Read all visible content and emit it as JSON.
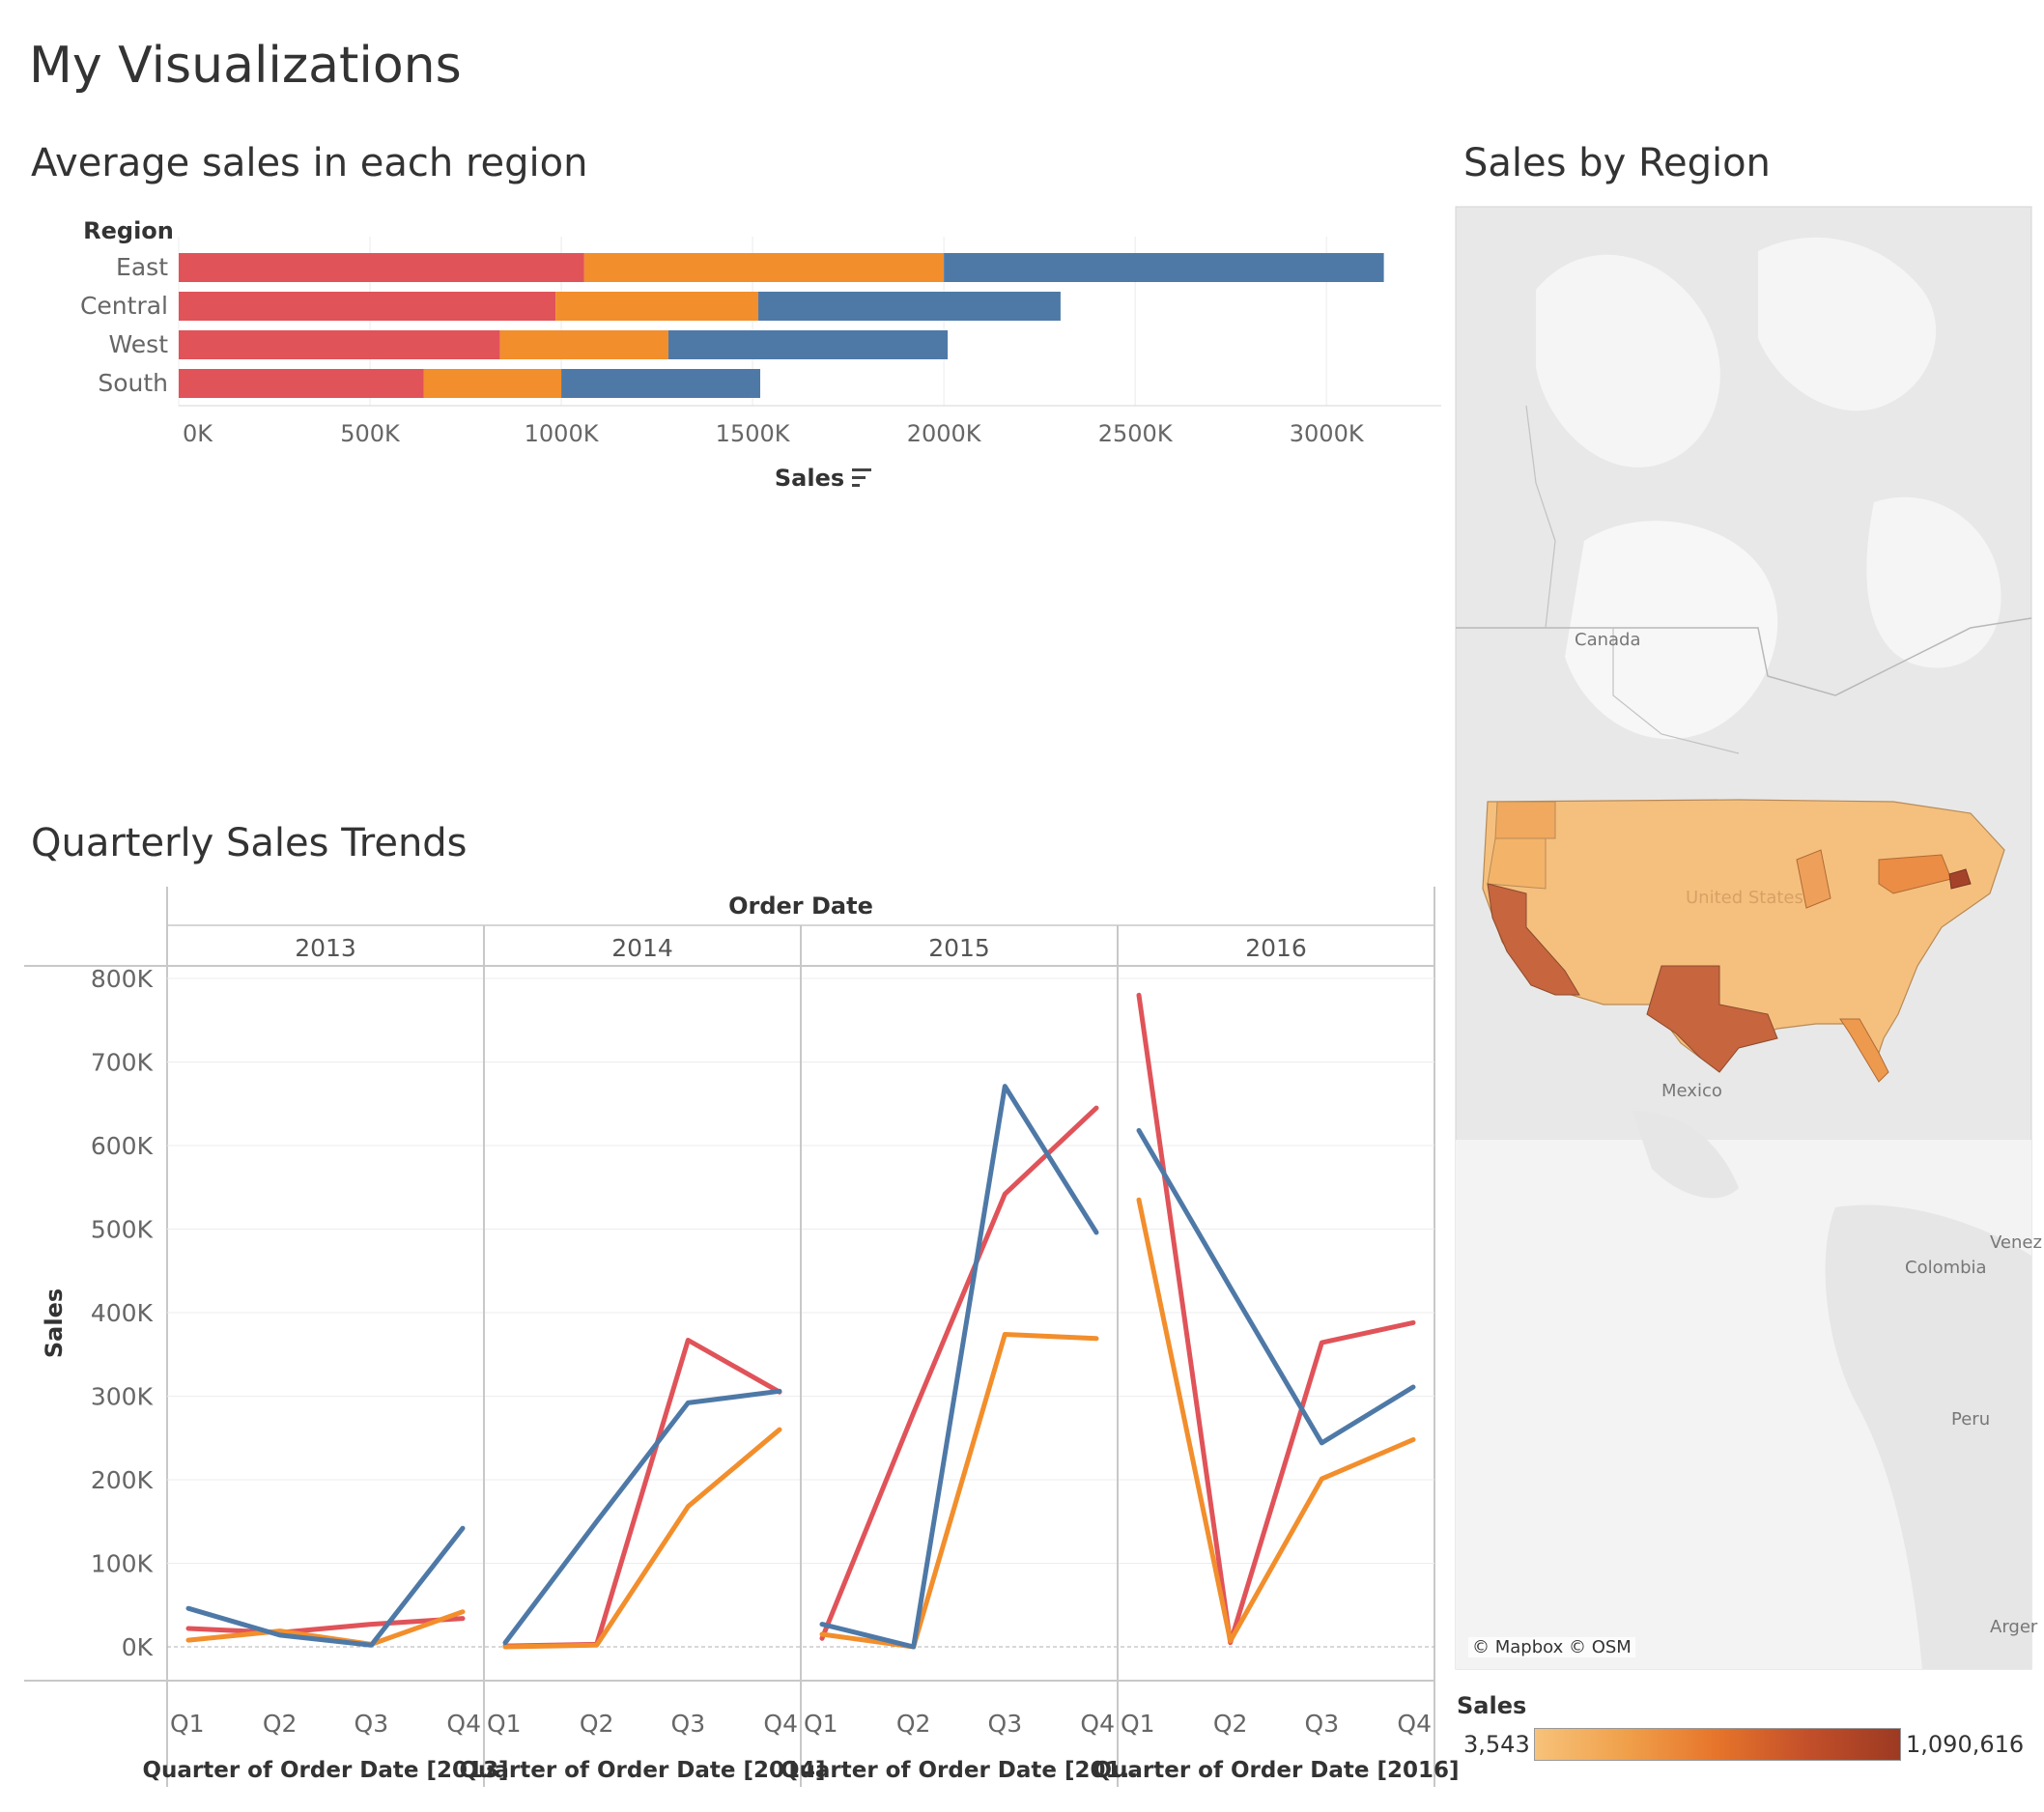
{
  "page": {
    "title": "My Visualizations"
  },
  "colors": {
    "series1": "#e05359",
    "series2": "#f28e2c",
    "series3": "#4e79a7"
  },
  "bar_sheet": {
    "title": "Average sales in each region"
  },
  "map_sheet": {
    "title": "Sales by Region",
    "labels": {
      "canada": "Canada",
      "united_states": "United States",
      "mexico": "Mexico",
      "colombia": "Colombia",
      "peru": "Peru",
      "venezuela": "Venez",
      "argentina": "Arger"
    },
    "credit": "© Mapbox © OSM",
    "legend": {
      "title": "Sales",
      "min_label": "3,543",
      "max_label": "1,090,616",
      "min": 3543,
      "max": 1090616,
      "gradient": [
        "#f7c27a",
        "#e6742a",
        "#9c3a22"
      ]
    }
  },
  "line_sheet": {
    "title": "Quarterly Sales Trends"
  },
  "chart_data": [
    {
      "type": "bar",
      "stacked": true,
      "orientation": "horizontal",
      "row_header": "Region",
      "categories": [
        "East",
        "Central",
        "West",
        "South"
      ],
      "series": [
        {
          "color": "#e05359",
          "values": [
            1060000,
            985000,
            840000,
            640000
          ]
        },
        {
          "color": "#f28e2c",
          "values": [
            940000,
            530000,
            440000,
            360000
          ]
        },
        {
          "color": "#4e79a7",
          "values": [
            1150000,
            790000,
            730000,
            520000
          ]
        }
      ],
      "xlabel": "Sales",
      "xlim": [
        0,
        3300000
      ],
      "xticks": [
        0,
        500000,
        1000000,
        1500000,
        2000000,
        2500000,
        3000000
      ],
      "xtick_labels": [
        "0K",
        "500K",
        "1000K",
        "1500K",
        "2000K",
        "2500K",
        "3000K"
      ],
      "grid": true
    },
    {
      "type": "line",
      "column_header": "Order Date",
      "panels": [
        {
          "year": "2013",
          "xlabel": "Quarter of Order Date [2013]",
          "series": [
            {
              "color": "#e05359",
              "values": [
                22000,
                17000,
                27000,
                34000
              ]
            },
            {
              "color": "#f28e2c",
              "values": [
                8000,
                19000,
                3000,
                42000
              ]
            },
            {
              "color": "#4e79a7",
              "values": [
                46000,
                14000,
                2000,
                142000
              ]
            }
          ]
        },
        {
          "year": "2014",
          "xlabel": "Quarter of Order Date [2014]",
          "series": [
            {
              "color": "#e05359",
              "values": [
                1000,
                3000,
                367000,
                305000
              ]
            },
            {
              "color": "#f28e2c",
              "values": [
                0,
                2000,
                168000,
                260000
              ]
            },
            {
              "color": "#4e79a7",
              "values": [
                5000,
                150000,
                292000,
                306000
              ]
            }
          ]
        },
        {
          "year": "2015",
          "xlabel": "Quarter of Order Date [201..",
          "series": [
            {
              "color": "#e05359",
              "values": [
                10000,
                280000,
                542000,
                645000
              ]
            },
            {
              "color": "#f28e2c",
              "values": [
                15000,
                0,
                374000,
                369000
              ]
            },
            {
              "color": "#4e79a7",
              "values": [
                27000,
                0,
                671000,
                496000
              ]
            }
          ]
        },
        {
          "year": "2016",
          "xlabel": "Quarter of Order Date [2016]",
          "series": [
            {
              "color": "#e05359",
              "values": [
                780000,
                5000,
                364000,
                388000
              ]
            },
            {
              "color": "#f28e2c",
              "values": [
                535000,
                7000,
                201000,
                248000
              ]
            },
            {
              "color": "#4e79a7",
              "values": [
                618000,
                430000,
                244000,
                311000
              ]
            }
          ]
        }
      ],
      "categories": [
        "Q1",
        "Q2",
        "Q3",
        "Q4"
      ],
      "ylabel": "Sales",
      "ylim": [
        -25000,
        820000
      ],
      "yticks": [
        0,
        100000,
        200000,
        300000,
        400000,
        500000,
        600000,
        700000,
        800000
      ],
      "ytick_labels": [
        "0K",
        "100K",
        "200K",
        "300K",
        "400K",
        "500K",
        "600K",
        "700K",
        "800K"
      ],
      "grid": true
    }
  ]
}
